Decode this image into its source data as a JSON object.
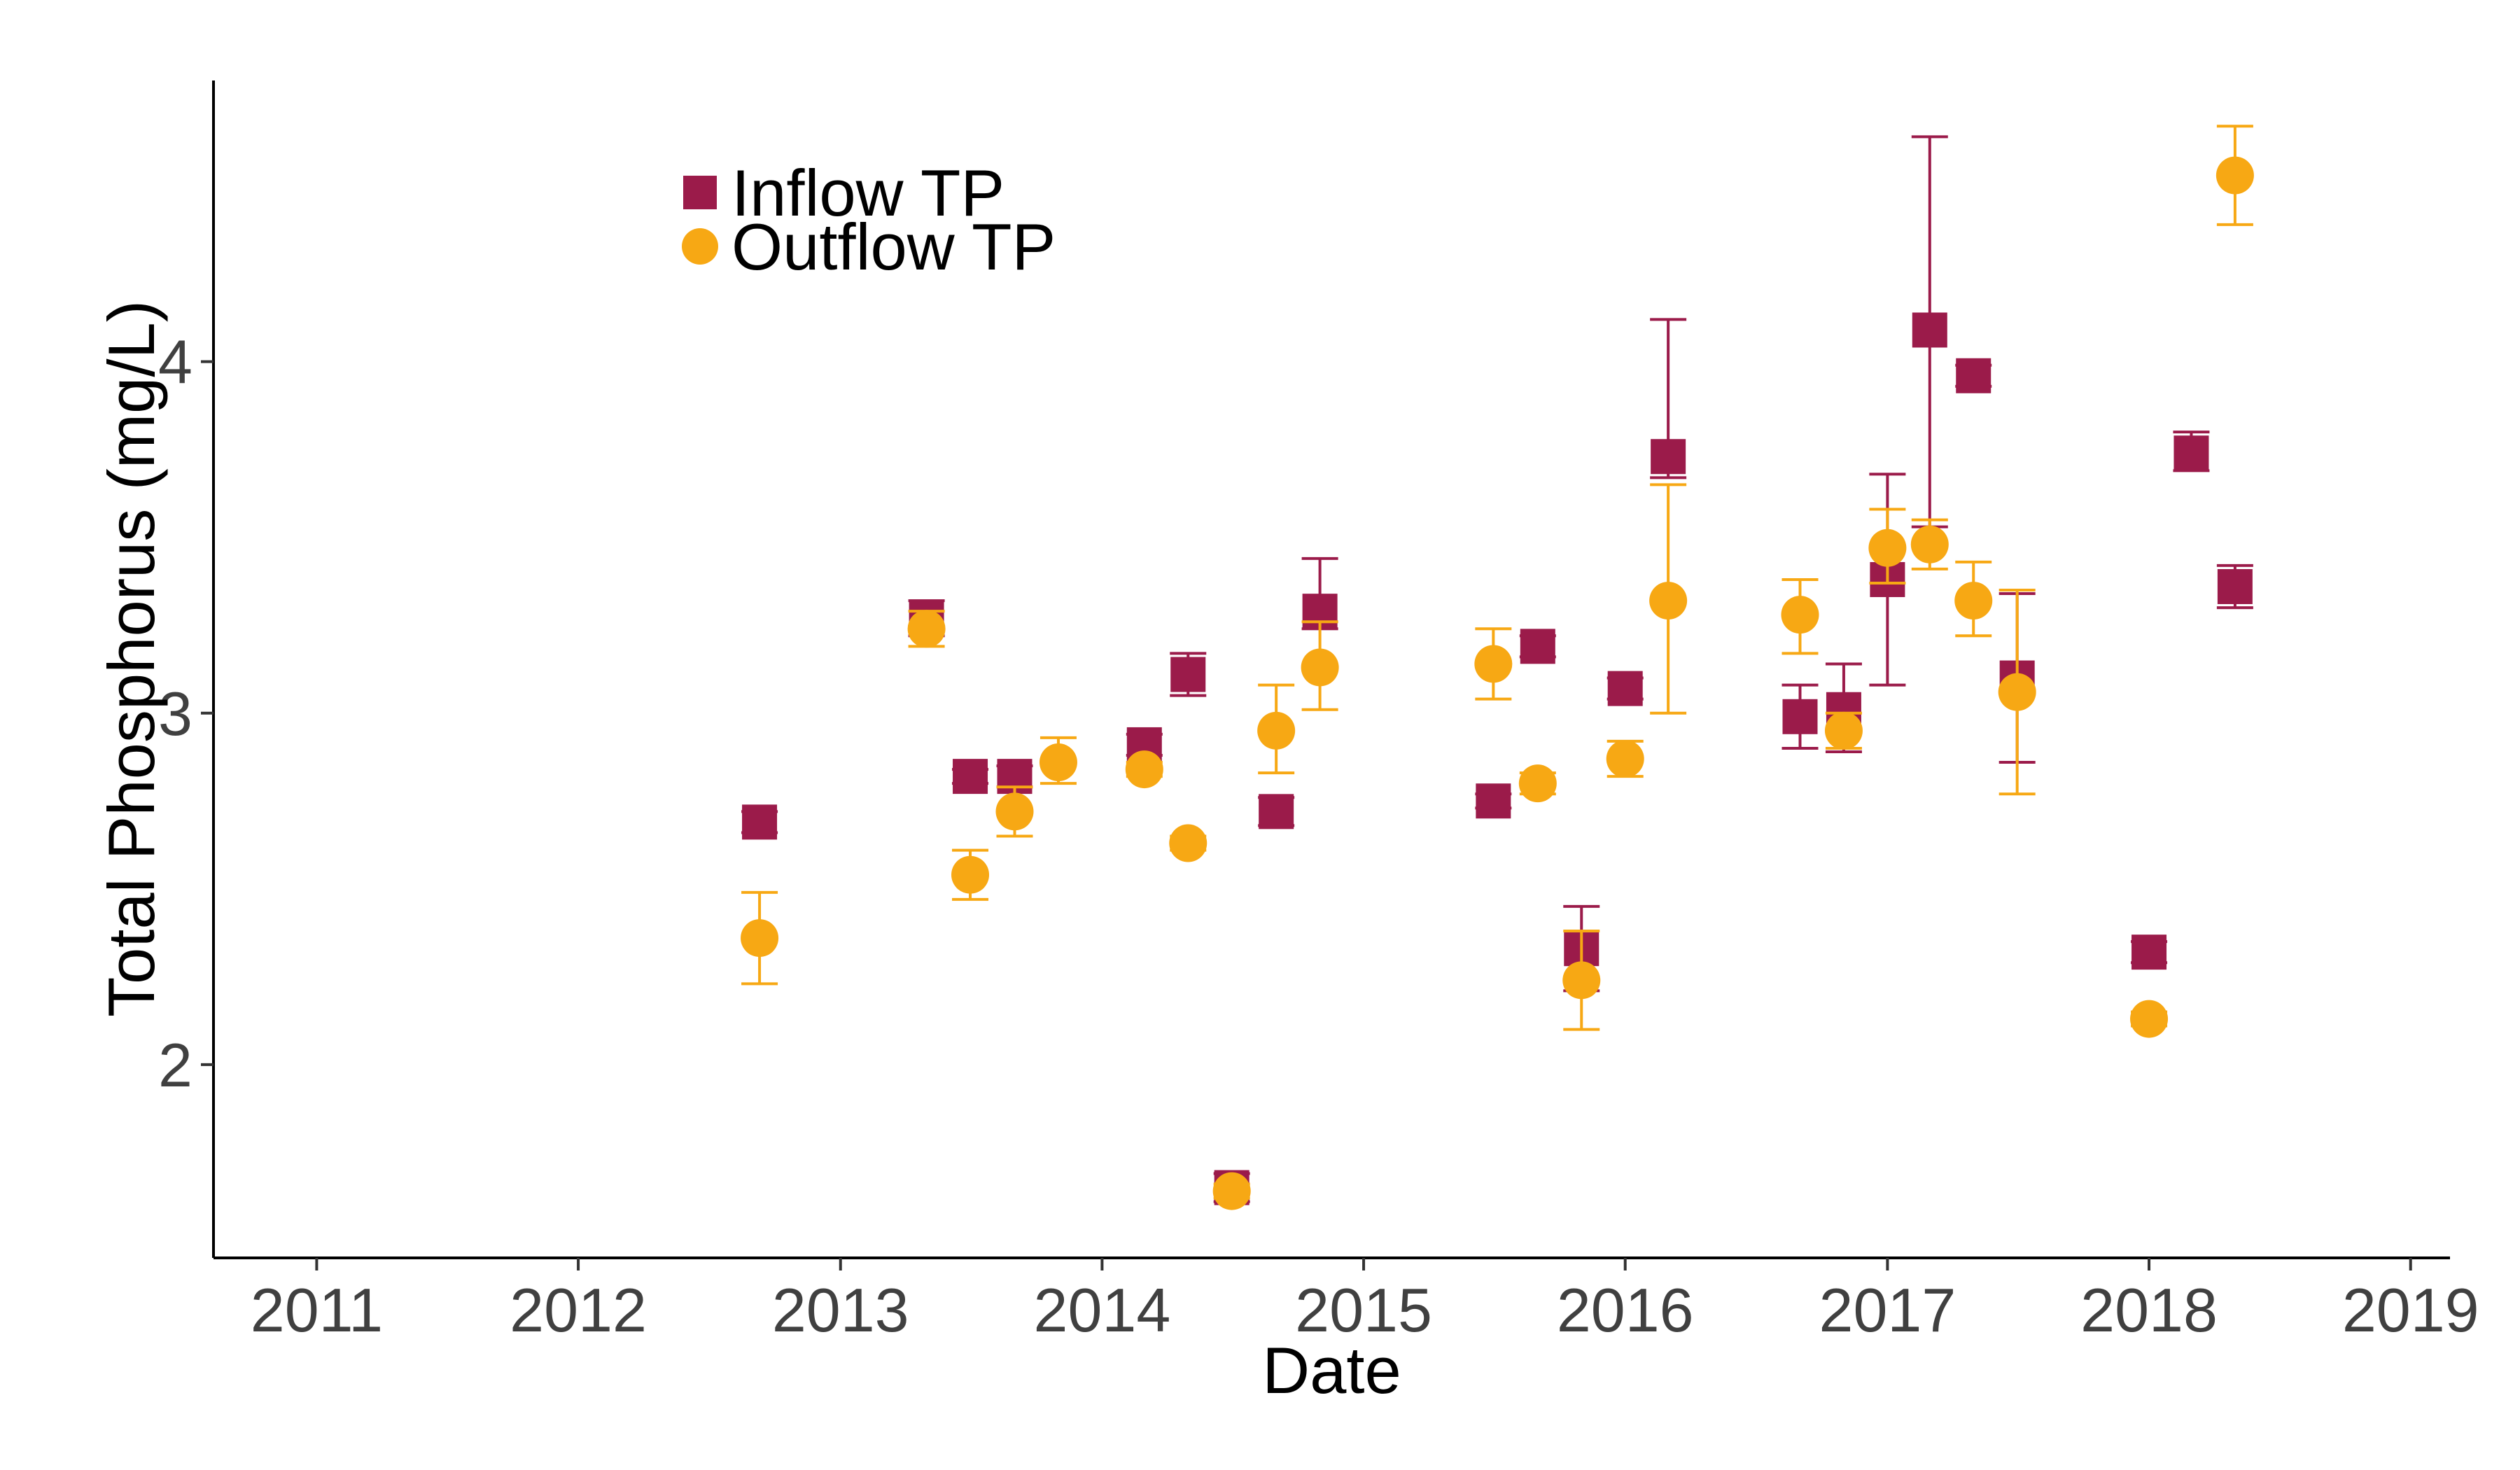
{
  "chart_data": {
    "type": "scatter",
    "title": "",
    "xlabel": "Date",
    "ylabel": "Total Phosphorus (mg/L)",
    "x_ticks": [
      "2011",
      "2012",
      "2013",
      "2014",
      "2015",
      "2016",
      "2017",
      "2018",
      "2019"
    ],
    "y_ticks": [
      "2",
      "3",
      "4"
    ],
    "xlim": [
      "2010-08-10",
      "2019-02-25"
    ],
    "ylim": [
      1.45,
      4.8
    ],
    "grid": false,
    "legend_position": "top-left",
    "series": [
      {
        "name": "Inflow TP",
        "marker": "square",
        "color": "#9B1B4A",
        "points": [
          {
            "x": "2012-09-10",
            "y": 2.69,
            "err_low": 2.66,
            "err_high": 2.72
          },
          {
            "x": "2013-05-01",
            "y": 3.27,
            "err_low": 3.22,
            "err_high": 3.32
          },
          {
            "x": "2013-07-01",
            "y": 2.82,
            "err_low": 2.8,
            "err_high": 2.84
          },
          {
            "x": "2013-09-01",
            "y": 2.82,
            "err_low": 2.79,
            "err_high": 2.85
          },
          {
            "x": "2014-03-01",
            "y": 2.91,
            "err_low": 2.88,
            "err_high": 2.94
          },
          {
            "x": "2014-05-01",
            "y": 3.11,
            "err_low": 3.05,
            "err_high": 3.17
          },
          {
            "x": "2014-07-01",
            "y": 1.65,
            "err_low": 1.61,
            "err_high": 1.69
          },
          {
            "x": "2014-09-01",
            "y": 2.72,
            "err_low": 2.68,
            "err_high": 2.76
          },
          {
            "x": "2014-11-01",
            "y": 3.29,
            "err_low": 3.24,
            "err_high": 3.44
          },
          {
            "x": "2015-07-01",
            "y": 2.75,
            "err_low": 2.73,
            "err_high": 2.77
          },
          {
            "x": "2015-09-01",
            "y": 3.19,
            "err_low": 3.16,
            "err_high": 3.22
          },
          {
            "x": "2015-11-01",
            "y": 2.33,
            "err_low": 2.21,
            "err_high": 2.45
          },
          {
            "x": "2016-01-01",
            "y": 3.07,
            "err_low": 3.04,
            "err_high": 3.1
          },
          {
            "x": "2016-03-01",
            "y": 3.73,
            "err_low": 3.67,
            "err_high": 4.12
          },
          {
            "x": "2016-09-01",
            "y": 2.99,
            "err_low": 2.9,
            "err_high": 3.08
          },
          {
            "x": "2016-11-01",
            "y": 3.01,
            "err_low": 2.89,
            "err_high": 3.14
          },
          {
            "x": "2017-01-01",
            "y": 3.38,
            "err_low": 3.08,
            "err_high": 3.68
          },
          {
            "x": "2017-03-01",
            "y": 4.09,
            "err_low": 3.53,
            "err_high": 4.64
          },
          {
            "x": "2017-05-01",
            "y": 3.96,
            "err_low": 3.93,
            "err_high": 3.99
          },
          {
            "x": "2017-07-01",
            "y": 3.1,
            "err_low": 2.86,
            "err_high": 3.34
          },
          {
            "x": "2018-01-01",
            "y": 2.32,
            "err_low": 2.29,
            "err_high": 2.35
          },
          {
            "x": "2018-03-01",
            "y": 3.74,
            "err_low": 3.69,
            "err_high": 3.8
          },
          {
            "x": "2018-05-01",
            "y": 3.36,
            "err_low": 3.3,
            "err_high": 3.42
          }
        ]
      },
      {
        "name": "Outflow TP",
        "marker": "circle",
        "color": "#F7A814",
        "points": [
          {
            "x": "2012-09-10",
            "y": 2.36,
            "err_low": 2.23,
            "err_high": 2.49
          },
          {
            "x": "2013-05-01",
            "y": 3.24,
            "err_low": 3.19,
            "err_high": 3.29
          },
          {
            "x": "2013-07-01",
            "y": 2.54,
            "err_low": 2.47,
            "err_high": 2.61
          },
          {
            "x": "2013-09-01",
            "y": 2.72,
            "err_low": 2.65,
            "err_high": 2.79
          },
          {
            "x": "2013-11-01",
            "y": 2.86,
            "err_low": 2.8,
            "err_high": 2.93
          },
          {
            "x": "2014-03-01",
            "y": 2.84,
            "err_low": 2.82,
            "err_high": 2.86
          },
          {
            "x": "2014-05-01",
            "y": 2.63,
            "err_low": 2.61,
            "err_high": 2.65
          },
          {
            "x": "2014-07-01",
            "y": 1.64,
            "err_low": 1.62,
            "err_high": 1.66
          },
          {
            "x": "2014-09-01",
            "y": 2.95,
            "err_low": 2.83,
            "err_high": 3.08
          },
          {
            "x": "2014-11-01",
            "y": 3.13,
            "err_low": 3.01,
            "err_high": 3.26
          },
          {
            "x": "2015-07-01",
            "y": 3.14,
            "err_low": 3.04,
            "err_high": 3.24
          },
          {
            "x": "2015-09-01",
            "y": 2.8,
            "err_low": 2.77,
            "err_high": 2.83
          },
          {
            "x": "2015-11-01",
            "y": 2.24,
            "err_low": 2.1,
            "err_high": 2.38
          },
          {
            "x": "2016-01-01",
            "y": 2.87,
            "err_low": 2.82,
            "err_high": 2.92
          },
          {
            "x": "2016-03-01",
            "y": 3.32,
            "err_low": 3.0,
            "err_high": 3.65
          },
          {
            "x": "2016-09-01",
            "y": 3.28,
            "err_low": 3.17,
            "err_high": 3.38
          },
          {
            "x": "2016-11-01",
            "y": 2.95,
            "err_low": 2.9,
            "err_high": 3.0
          },
          {
            "x": "2017-01-01",
            "y": 3.47,
            "err_low": 3.37,
            "err_high": 3.58
          },
          {
            "x": "2017-03-01",
            "y": 3.48,
            "err_low": 3.41,
            "err_high": 3.55
          },
          {
            "x": "2017-05-01",
            "y": 3.32,
            "err_low": 3.22,
            "err_high": 3.43
          },
          {
            "x": "2017-07-01",
            "y": 3.06,
            "err_low": 2.77,
            "err_high": 3.35
          },
          {
            "x": "2018-01-01",
            "y": 2.13,
            "err_low": 2.11,
            "err_high": 2.15
          },
          {
            "x": "2018-05-01",
            "y": 4.53,
            "err_low": 4.39,
            "err_high": 4.67
          }
        ]
      }
    ]
  }
}
